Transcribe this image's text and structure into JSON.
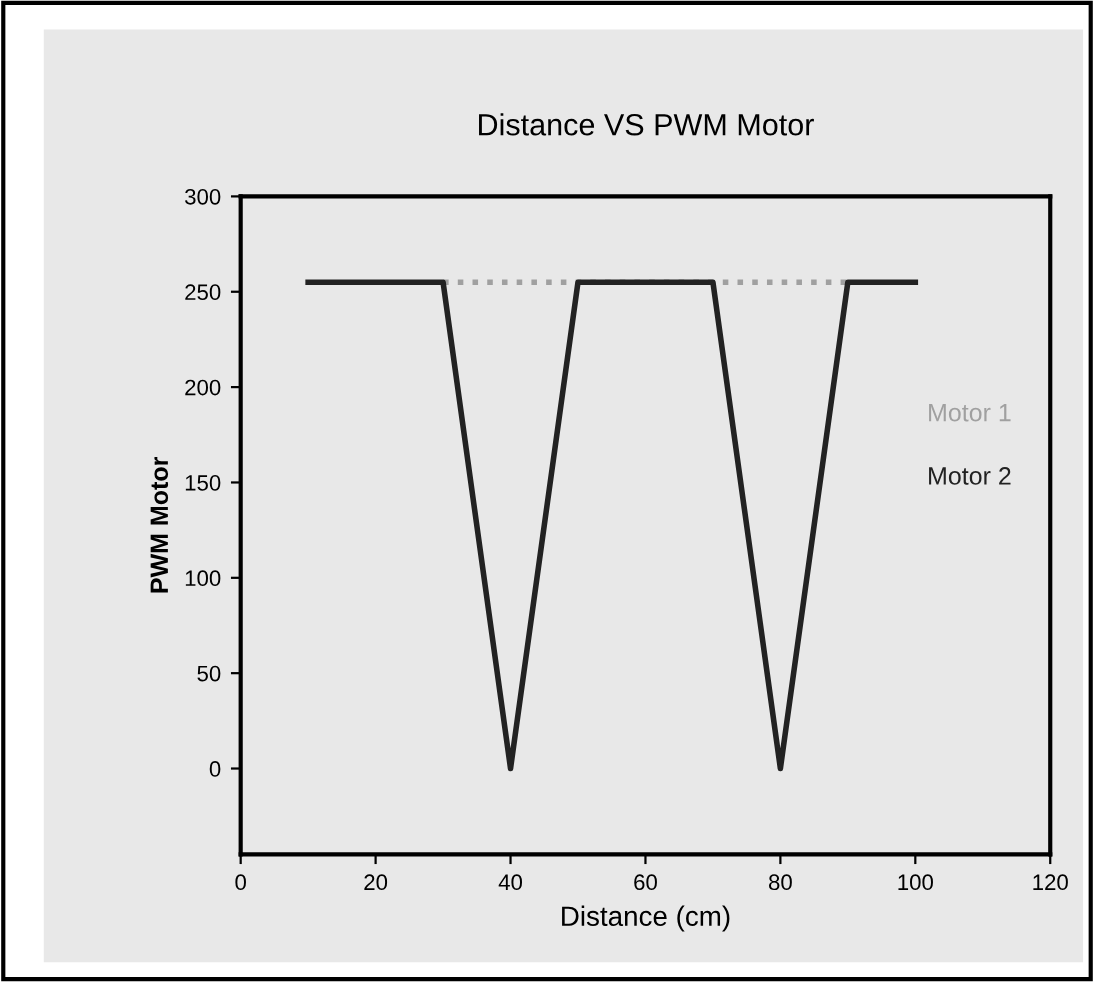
{
  "chart_data": {
    "type": "line",
    "title": "Distance VS PWM Motor",
    "xlabel": "Distance (cm)",
    "ylabel": "PWM Motor",
    "x": [
      10,
      30,
      40,
      50,
      70,
      80,
      90,
      100
    ],
    "series": [
      {
        "name": "Motor 1",
        "color": "#a0a0a0",
        "line_style": "dotted",
        "values": [
          null,
          255,
          255,
          255,
          255,
          255,
          255,
          null
        ]
      },
      {
        "name": "Motor 2",
        "color": "#222222",
        "line_style": "solid",
        "values": [
          255,
          255,
          0,
          255,
          255,
          0,
          255,
          255
        ]
      }
    ],
    "xlim": [
      0,
      120
    ],
    "xticks": [
      0,
      20,
      40,
      60,
      80,
      100,
      120
    ],
    "ylim": [
      -45,
      300
    ],
    "yticks": [
      0,
      50,
      100,
      150,
      200,
      250,
      300
    ],
    "grid": false,
    "legend": "right",
    "marker": "none"
  }
}
